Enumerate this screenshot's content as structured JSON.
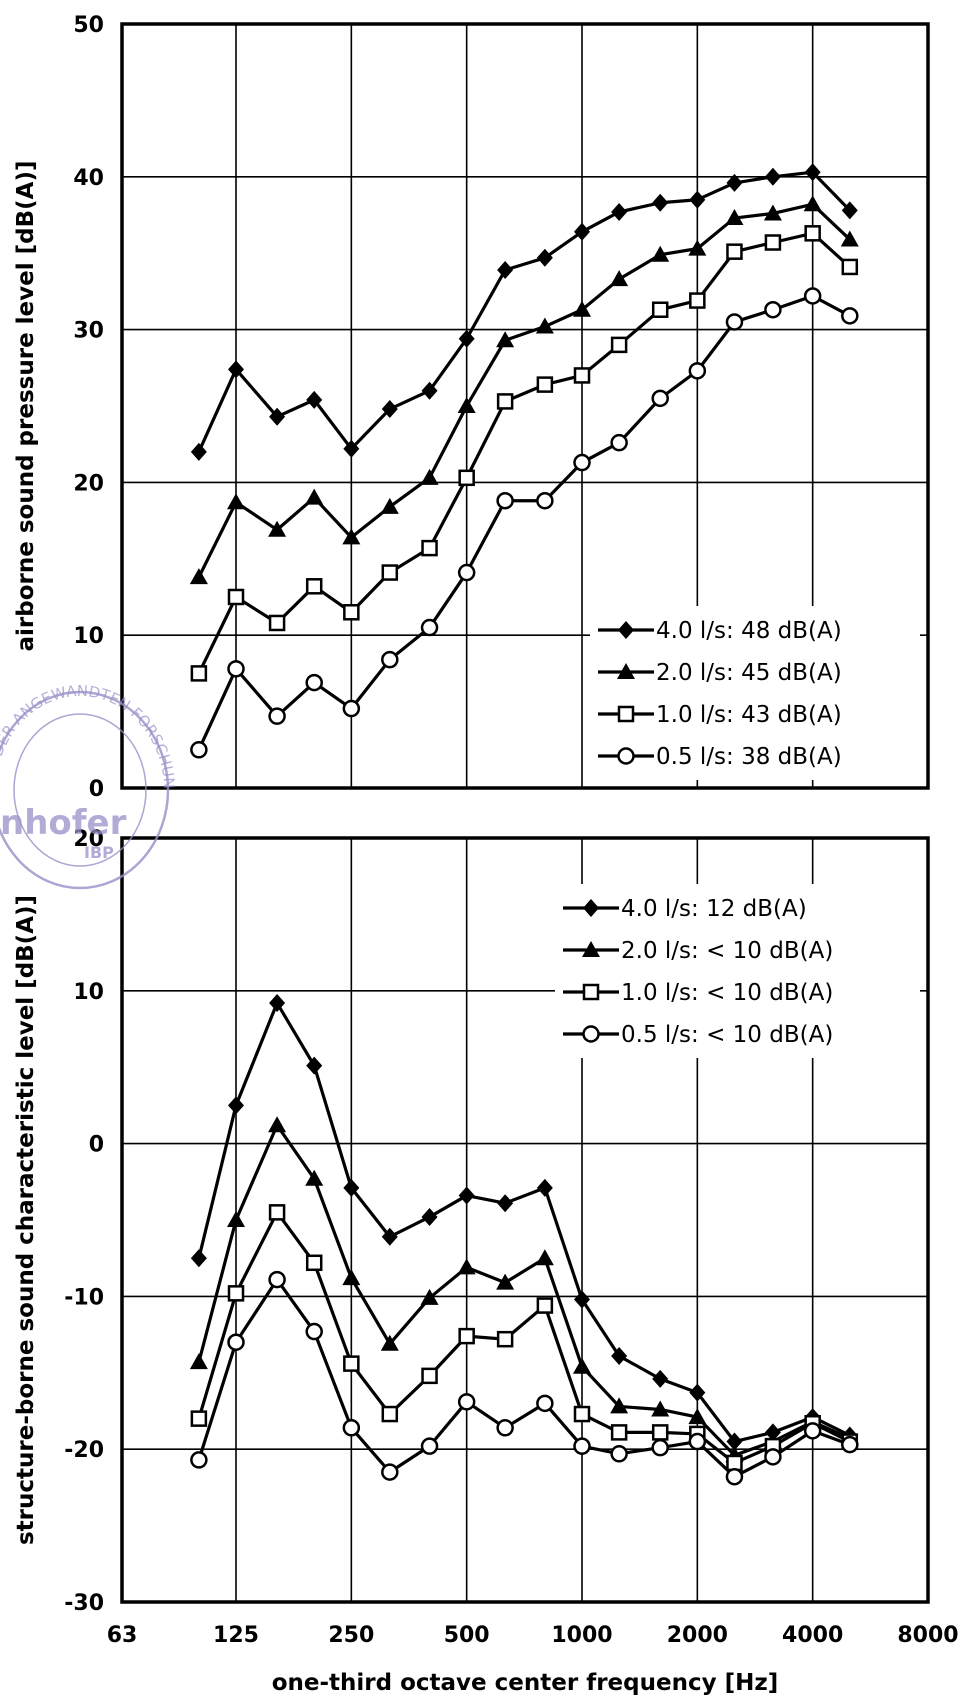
{
  "chart_data": [
    {
      "type": "line",
      "ylabel": "airborne sound pressure level [dB(A)]",
      "xlabel": "",
      "ylim": [
        0,
        50
      ],
      "yticks": [
        "0",
        "10",
        "20",
        "30",
        "40",
        "50"
      ],
      "x": [
        100,
        125,
        160,
        200,
        250,
        315,
        400,
        500,
        630,
        800,
        1000,
        1250,
        1600,
        2000,
        2500,
        3150,
        4000,
        5000
      ],
      "series": [
        {
          "name": "4.0 l/s: 48 dB(A)",
          "marker": "filled-diamond",
          "values": [
            22.0,
            27.4,
            24.3,
            25.4,
            22.2,
            24.8,
            26.0,
            29.4,
            33.9,
            34.7,
            36.4,
            37.7,
            38.3,
            38.5,
            39.6,
            40.0,
            40.3,
            37.8
          ]
        },
        {
          "name": "2.0 l/s: 45 dB(A)",
          "marker": "filled-triangle",
          "values": [
            13.8,
            18.7,
            16.9,
            19.0,
            16.4,
            18.4,
            20.3,
            25.0,
            29.3,
            30.2,
            31.3,
            33.3,
            34.9,
            35.3,
            37.3,
            37.6,
            38.2,
            35.9
          ]
        },
        {
          "name": "1.0 l/s: 43 dB(A)",
          "marker": "open-square",
          "values": [
            7.5,
            12.5,
            10.8,
            13.2,
            11.5,
            14.1,
            15.7,
            20.3,
            25.3,
            26.4,
            27.0,
            29.0,
            31.3,
            31.9,
            35.1,
            35.7,
            36.3,
            34.1
          ]
        },
        {
          "name": "0.5 l/s: 38 dB(A)",
          "marker": "open-circle",
          "values": [
            2.5,
            7.8,
            4.7,
            6.9,
            5.2,
            8.4,
            10.5,
            14.1,
            18.8,
            18.8,
            21.3,
            22.6,
            25.5,
            27.3,
            30.5,
            31.3,
            32.2,
            30.9
          ]
        }
      ],
      "legend_position": "bottom-right",
      "grid": true
    },
    {
      "type": "line",
      "ylabel": "structure-borne sound characteristic level [dB(A)]",
      "xlabel": "one-third octave center frequency [Hz]",
      "ylim": [
        -30,
        20
      ],
      "yticks": [
        "-30",
        "-20",
        "-10",
        "0",
        "10",
        "20"
      ],
      "x_scale": "log",
      "xlim": [
        63,
        8000
      ],
      "xticks": [
        "63",
        "125",
        "250",
        "500",
        "1000",
        "2000",
        "4000",
        "8000"
      ],
      "x": [
        100,
        125,
        160,
        200,
        250,
        315,
        400,
        500,
        630,
        800,
        1000,
        1250,
        1600,
        2000,
        2500,
        3150,
        4000,
        5000
      ],
      "series": [
        {
          "name": "4.0 l/s: 12 dB(A)",
          "marker": "filled-diamond",
          "values": [
            -7.5,
            2.5,
            9.2,
            5.1,
            -2.9,
            -6.1,
            -4.8,
            -3.4,
            -3.9,
            -2.9,
            -10.2,
            -13.9,
            -15.4,
            -16.3,
            -19.5,
            -18.9,
            -17.9,
            -19.1
          ]
        },
        {
          "name": "2.0 l/s: < 10 dB(A)",
          "marker": "filled-triangle",
          "values": [
            -14.3,
            -5.0,
            1.2,
            -2.3,
            -8.8,
            -13.1,
            -10.1,
            -8.1,
            -9.1,
            -7.5,
            -14.6,
            -17.2,
            -17.4,
            -17.9,
            -20.4,
            -19.5,
            -18.2,
            -19.3
          ]
        },
        {
          "name": "1.0 l/s: < 10 dB(A)",
          "marker": "open-square",
          "values": [
            -18.0,
            -9.8,
            -4.5,
            -7.8,
            -14.4,
            -17.7,
            -15.2,
            -12.6,
            -12.8,
            -10.6,
            -17.7,
            -18.9,
            -18.9,
            -19.0,
            -20.9,
            -19.8,
            -18.3,
            -19.5
          ]
        },
        {
          "name": "0.5 l/s: < 10 dB(A)",
          "marker": "open-circle",
          "values": [
            -20.7,
            -13.0,
            -8.9,
            -12.3,
            -18.6,
            -21.5,
            -19.8,
            -16.9,
            -18.6,
            -17.0,
            -19.8,
            -20.3,
            -19.9,
            -19.5,
            -21.8,
            -20.5,
            -18.8,
            -19.7
          ]
        }
      ],
      "legend_position": "top-right",
      "grid": true
    }
  ],
  "stamp": {
    "brand": "nhofer",
    "sub": "IBP",
    "ring_text": "NG DER ANGEWANDTEN FORSCHUNG E.V."
  }
}
